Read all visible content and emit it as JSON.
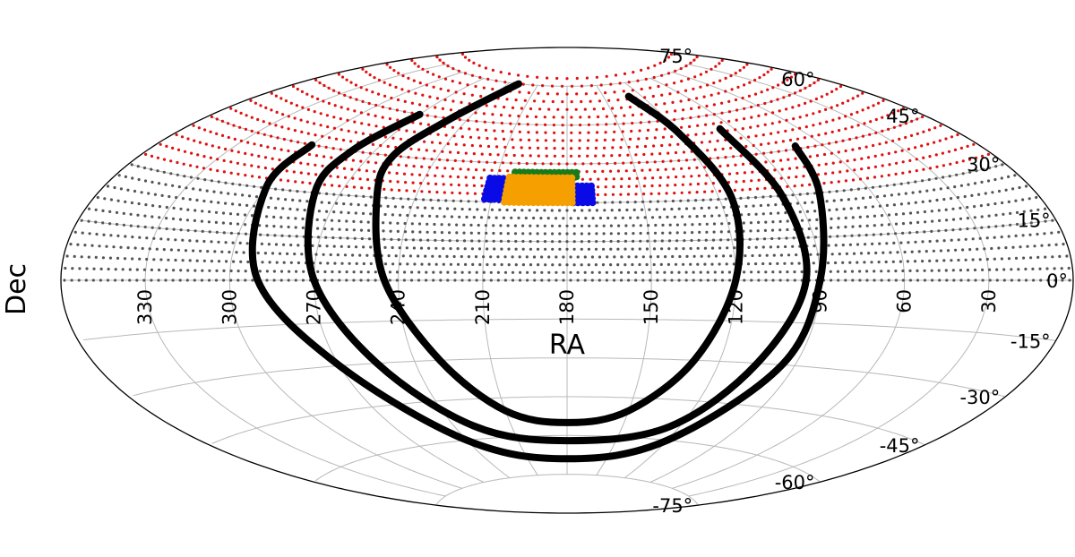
{
  "chart_data": {
    "type": "scatter",
    "projection": "aitoff",
    "xlabel": "RA",
    "ylabel": "Dec",
    "ra_tick_labels": [
      "330",
      "300",
      "270",
      "240",
      "210",
      "180",
      "150",
      "120",
      "90",
      "60",
      "30"
    ],
    "dec_tick_labels": [
      "75°",
      "60°",
      "45°",
      "30°",
      "15°",
      "0°",
      "-15°",
      "-30°",
      "-45°",
      "-60°",
      "-75°"
    ],
    "grid": true,
    "colors": {
      "grid": "#b8b8b8",
      "boundary": "#000000",
      "grey_points": "#555555",
      "red_points": "#e01010",
      "green_points": "#1a7a1a",
      "blue_points": "#0a0ae6",
      "orange_points": "#f5a000",
      "curves": "#000000"
    },
    "point_fields": {
      "grey": {
        "dec_range": [
          0,
          30
        ],
        "dec_step": 3
      },
      "red": {
        "dec_range": [
          33,
          80
        ],
        "dec_step": 3
      }
    },
    "highlight_clusters": {
      "orange": {
        "ra_range": [
          178,
          205
        ],
        "dec_range": [
          30,
          40
        ]
      },
      "blue_left": {
        "ra_range": [
          205,
          213
        ],
        "dec_range": [
          31,
          40
        ]
      },
      "blue_right": {
        "ra_range": [
          170,
          178
        ],
        "dec_range": [
          30,
          38
        ]
      },
      "green": {
        "ra_range": [
          176,
          204
        ],
        "dec_range": [
          40,
          43
        ]
      }
    },
    "curves": [
      {
        "points": [
          [
            300,
            45
          ],
          [
            300,
            30
          ],
          [
            290,
            0
          ],
          [
            270,
            -30
          ],
          [
            240,
            -60
          ],
          [
            180,
            -69
          ],
          [
            120,
            -60
          ],
          [
            95,
            -30
          ],
          [
            90,
            0
          ],
          [
            80,
            30
          ],
          [
            72,
            46
          ]
        ]
      },
      {
        "points": [
          [
            270,
            60
          ],
          [
            280,
            45
          ],
          [
            280,
            30
          ],
          [
            270,
            0
          ],
          [
            255,
            -30
          ],
          [
            230,
            -55
          ],
          [
            180,
            -62
          ],
          [
            125,
            -55
          ],
          [
            105,
            -30
          ],
          [
            95,
            0
          ],
          [
            95,
            30
          ],
          [
            97,
            55
          ]
        ]
      },
      {
        "points": [
          [
            230,
            75
          ],
          [
            250,
            60
          ],
          [
            260,
            45
          ],
          [
            255,
            30
          ],
          [
            245,
            0
          ],
          [
            230,
            -30
          ],
          [
            210,
            -50
          ],
          [
            180,
            -55
          ],
          [
            150,
            -50
          ],
          [
            130,
            -30
          ],
          [
            120,
            0
          ],
          [
            115,
            30
          ],
          [
            120,
            55
          ],
          [
            130,
            70
          ]
        ]
      }
    ]
  }
}
